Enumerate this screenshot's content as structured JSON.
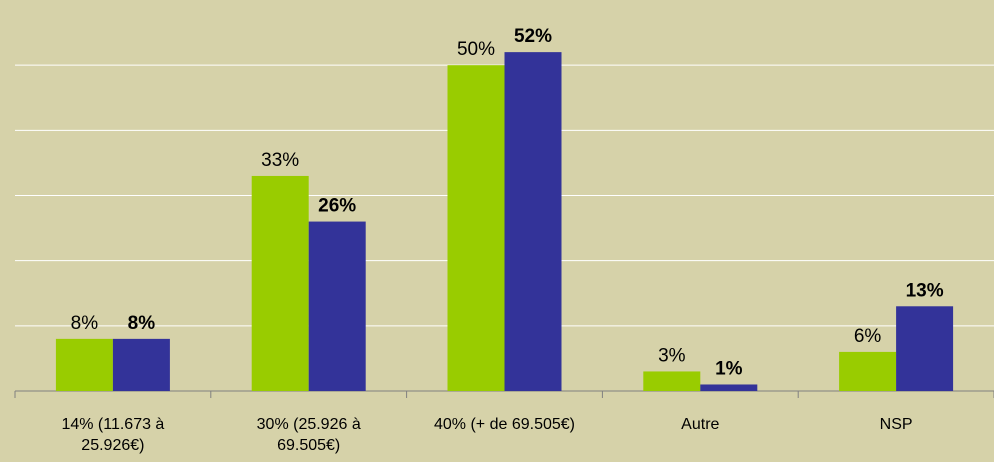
{
  "chart_data": {
    "type": "bar",
    "categories": [
      "14% (11.673 à 25.926€)",
      "30% (25.926 à 69.505€)",
      "40% (+ de 69.505€)",
      "Autre",
      "NSP"
    ],
    "series": [
      {
        "color": "#99cc00",
        "values": [
          8,
          33,
          50,
          3,
          6
        ],
        "value_labels": [
          "8%",
          "33%",
          "50%",
          "3%",
          "6%"
        ]
      },
      {
        "color": "#333399",
        "values": [
          8,
          26,
          52,
          1,
          13
        ],
        "value_labels": [
          "8%",
          "26%",
          "52%",
          "1%",
          "13%"
        ]
      }
    ],
    "ylim": [
      0,
      60
    ],
    "yticks": [
      0,
      10,
      20,
      30,
      40,
      50
    ],
    "grid": true
  }
}
